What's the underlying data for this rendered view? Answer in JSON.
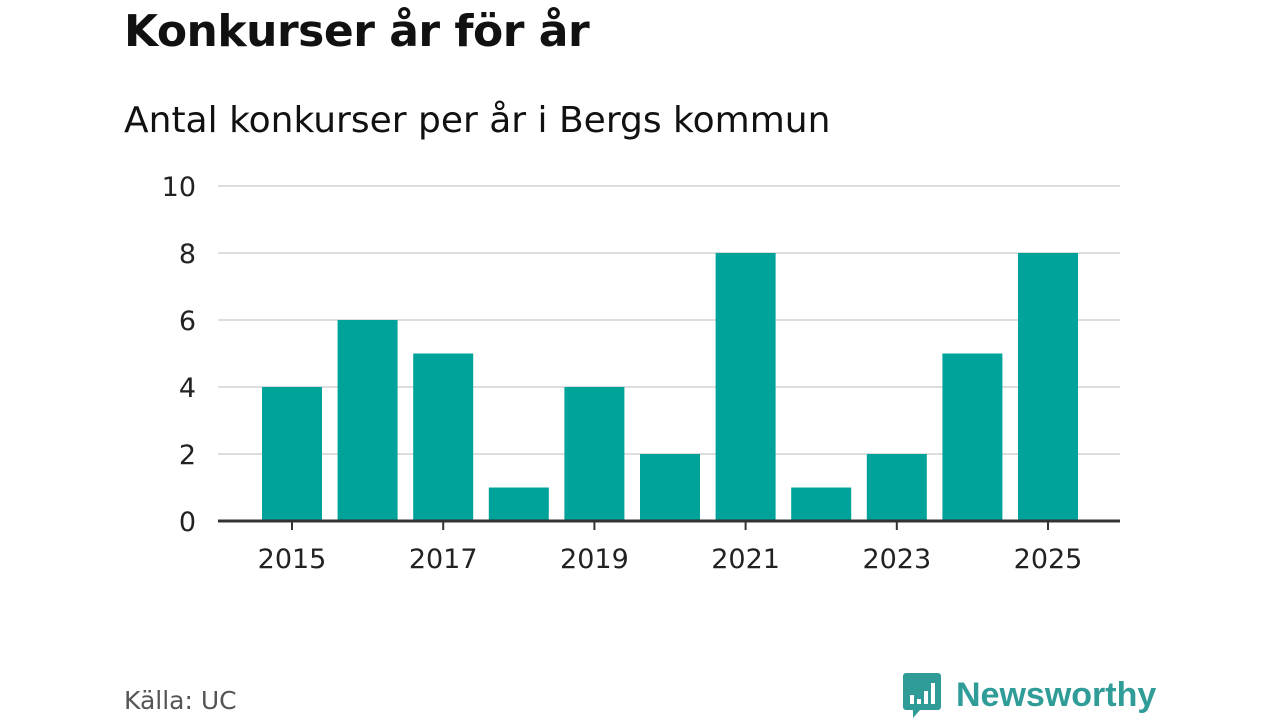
{
  "header": {
    "title": "Konkurser år för år",
    "subtitle": "Antal konkurser per år i Bergs kommun"
  },
  "footer": {
    "source": "Källa: UC",
    "brand": "Newsworthy",
    "brand_icon": "bar-chart-speech-bubble-icon"
  },
  "colors": {
    "bar": "#00a39a",
    "grid": "#dddddd",
    "axis": "#333333",
    "brand": "#2f9c98"
  },
  "chart_data": {
    "type": "bar",
    "title": "Konkurser år för år",
    "subtitle": "Antal konkurser per år i Bergs kommun",
    "xlabel": "",
    "ylabel": "",
    "categories": [
      "2015",
      "2016",
      "2017",
      "2018",
      "2019",
      "2020",
      "2021",
      "2022",
      "2023",
      "2024",
      "2025"
    ],
    "values": [
      4,
      6,
      5,
      1,
      4,
      2,
      8,
      1,
      2,
      5,
      8
    ],
    "x_tick_labels": [
      "2015",
      "2017",
      "2019",
      "2021",
      "2023",
      "2025"
    ],
    "y_ticks": [
      0,
      2,
      4,
      6,
      8,
      10
    ],
    "ylim": [
      0,
      10
    ],
    "grid": true,
    "legend": "none"
  }
}
